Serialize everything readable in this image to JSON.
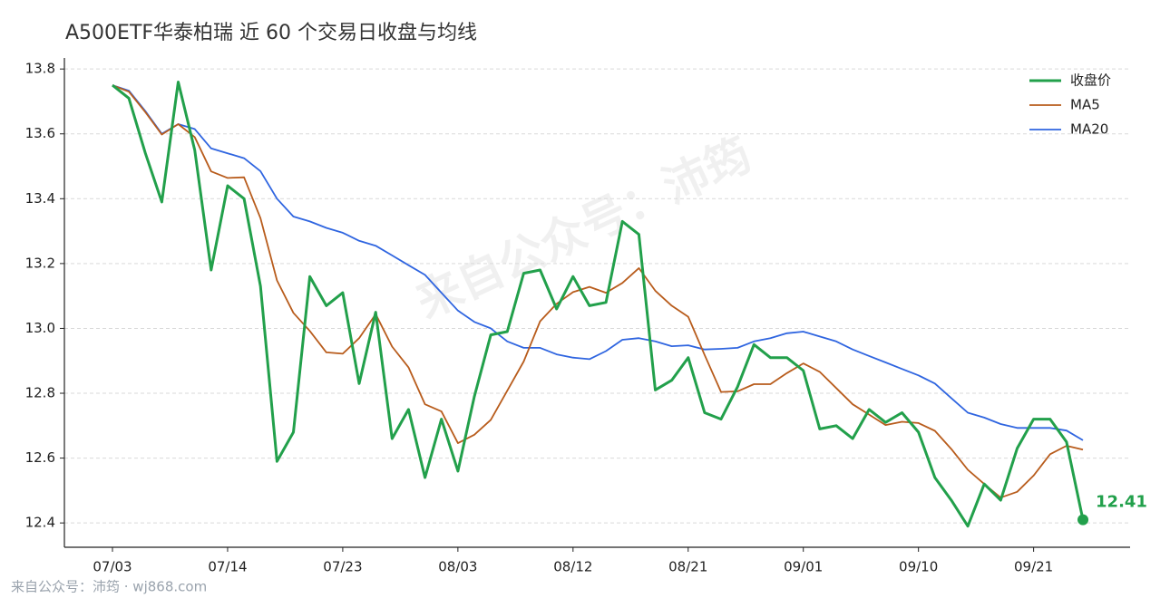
{
  "chart_data": {
    "type": "line",
    "title": "A500ETF华泰柏瑞 近 60 个交易日收盘与均线",
    "watermark": "来自公众号：沛筠",
    "footer": "来自公众号：沛筠 · wj868.com",
    "annotation": "12.41",
    "categories": [
      "07/03",
      null,
      null,
      null,
      null,
      null,
      null,
      "07/14",
      null,
      null,
      null,
      null,
      null,
      null,
      "07/23",
      null,
      null,
      null,
      null,
      null,
      null,
      "08/03",
      null,
      null,
      null,
      null,
      null,
      null,
      "08/12",
      null,
      null,
      null,
      null,
      null,
      null,
      "08/21",
      null,
      null,
      null,
      null,
      null,
      null,
      "09/01",
      null,
      null,
      null,
      null,
      null,
      null,
      "09/10",
      null,
      null,
      null,
      null,
      null,
      null,
      "09/21",
      null,
      null,
      null
    ],
    "series": [
      {
        "name": "收盘价",
        "color": "#22a04b",
        "values": [
          13.75,
          13.71,
          13.54,
          13.39,
          13.76,
          13.55,
          13.18,
          13.44,
          13.4,
          13.13,
          12.59,
          12.68,
          13.16,
          13.07,
          13.11,
          12.83,
          13.05,
          12.66,
          12.75,
          12.54,
          12.72,
          12.56,
          12.79,
          12.98,
          12.99,
          13.17,
          13.18,
          13.06,
          13.16,
          13.07,
          13.08,
          13.33,
          13.29,
          12.81,
          12.84,
          12.91,
          12.74,
          12.72,
          12.82,
          12.95,
          12.91,
          12.91,
          12.87,
          12.69,
          12.7,
          12.66,
          12.75,
          12.71,
          12.74,
          12.68,
          12.54,
          12.47,
          12.39,
          12.52,
          12.47,
          12.63,
          12.72,
          12.72,
          12.65,
          12.41
        ]
      },
      {
        "name": "MA5",
        "color": "#b85c1c",
        "values": [
          13.75,
          13.73,
          13.667,
          13.598,
          13.63,
          13.59,
          13.484,
          13.464,
          13.466,
          13.34,
          13.148,
          13.048,
          12.992,
          12.926,
          12.922,
          12.97,
          13.044,
          12.944,
          12.88,
          12.766,
          12.744,
          12.646,
          12.672,
          12.718,
          12.808,
          12.898,
          13.022,
          13.076,
          13.112,
          13.128,
          13.11,
          13.14,
          13.186,
          13.116,
          13.07,
          13.036,
          12.918,
          12.804,
          12.806,
          12.828,
          12.828,
          12.862,
          12.892,
          12.866,
          12.816,
          12.766,
          12.734,
          12.702,
          12.712,
          12.708,
          12.684,
          12.628,
          12.564,
          12.52,
          12.478,
          12.496,
          12.546,
          12.612,
          12.638,
          12.626
        ]
      },
      {
        "name": "MA20",
        "color": "#2f65e0",
        "values": [
          13.75,
          13.733,
          13.67,
          13.6,
          13.63,
          13.615,
          13.555,
          13.54,
          13.525,
          13.485,
          13.4,
          13.345,
          13.33,
          13.31,
          13.295,
          13.27,
          13.255,
          13.225,
          13.195,
          13.165,
          13.11,
          13.055,
          13.02,
          13.0,
          12.96,
          12.94,
          12.94,
          12.92,
          12.91,
          12.905,
          12.93,
          12.965,
          12.97,
          12.96,
          12.945,
          12.948,
          12.935,
          12.937,
          12.94,
          12.96,
          12.97,
          12.985,
          12.99,
          12.975,
          12.96,
          12.935,
          12.915,
          12.895,
          12.875,
          12.855,
          12.83,
          12.785,
          12.74,
          12.725,
          12.705,
          12.693,
          12.693,
          12.693,
          12.685,
          12.655
        ]
      }
    ],
    "ylim": [
      12.325,
      13.834
    ],
    "yticks": [
      {
        "value": 12.4,
        "label": "12.4"
      },
      {
        "value": 12.6,
        "label": "12.6"
      },
      {
        "value": 12.8,
        "label": "12.8"
      },
      {
        "value": 13.0,
        "label": "13.0"
      },
      {
        "value": 13.2,
        "label": "13.2"
      },
      {
        "value": 13.4,
        "label": "13.4"
      },
      {
        "value": 13.6,
        "label": "13.6"
      },
      {
        "value": 13.8,
        "label": "13.8"
      }
    ],
    "grid": true,
    "legend": "upper right"
  }
}
